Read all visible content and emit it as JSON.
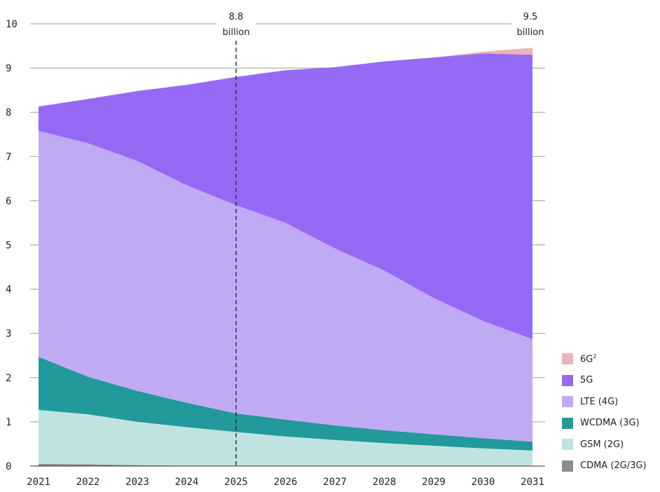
{
  "chart_data": {
    "type": "area",
    "stacked": true,
    "x": [
      2021,
      2022,
      2023,
      2024,
      2025,
      2026,
      2027,
      2028,
      2029,
      2030,
      2031
    ],
    "ylim": [
      0,
      10
    ],
    "yticks": [
      0,
      1,
      2,
      3,
      4,
      5,
      6,
      7,
      8,
      9,
      10
    ],
    "grid": true,
    "legend_position": "bottom-right",
    "series": [
      {
        "name": "CDMA (2G/3G)",
        "color": "#8c8c8c",
        "values": [
          0.05,
          0.04,
          0.02,
          0.01,
          0.0,
          0.0,
          0.0,
          0.0,
          0.0,
          0.0,
          0.0
        ]
      },
      {
        "name": "GSM (2G)",
        "color": "#bfe3e1",
        "values": [
          1.22,
          1.13,
          0.98,
          0.87,
          0.77,
          0.67,
          0.59,
          0.52,
          0.46,
          0.4,
          0.35
        ]
      },
      {
        "name": "WCDMA (3G)",
        "color": "#22999a",
        "values": [
          1.2,
          0.85,
          0.7,
          0.55,
          0.42,
          0.38,
          0.33,
          0.29,
          0.26,
          0.23,
          0.2
        ]
      },
      {
        "name": "LTE (4G)",
        "color": "#c1aaf4",
        "values": [
          5.11,
          5.28,
          5.2,
          4.92,
          4.71,
          4.45,
          4.0,
          3.61,
          3.08,
          2.65,
          2.32
        ]
      },
      {
        "name": "5G",
        "color": "#946af5",
        "values": [
          0.55,
          1.0,
          1.58,
          2.27,
          2.9,
          3.45,
          4.1,
          4.73,
          5.44,
          6.05,
          6.43
        ]
      },
      {
        "name": "6G²",
        "color": "#ecb3b8",
        "values": [
          0.0,
          0.0,
          0.0,
          0.0,
          0.0,
          0.0,
          0.0,
          0.0,
          0.0,
          0.04,
          0.16
        ]
      }
    ],
    "annotations": [
      {
        "x": 2025,
        "value": 8.8,
        "line1": "8.8",
        "line2": "billion"
      },
      {
        "x": 2031,
        "value": 9.5,
        "line1": "9.5",
        "line2": "billion"
      }
    ]
  },
  "legend": [
    {
      "label": "6G",
      "sup": "2",
      "color": "#ecb3b8"
    },
    {
      "label": "5G",
      "sup": "",
      "color": "#946af5"
    },
    {
      "label": "LTE (4G)",
      "sup": "",
      "color": "#c1aaf4"
    },
    {
      "label": "WCDMA (3G)",
      "sup": "",
      "color": "#22999a"
    },
    {
      "label": "GSM (2G)",
      "sup": "",
      "color": "#bfe3e1"
    },
    {
      "label": "CDMA (2G/3G)",
      "sup": "",
      "color": "#8c8c8c"
    }
  ]
}
